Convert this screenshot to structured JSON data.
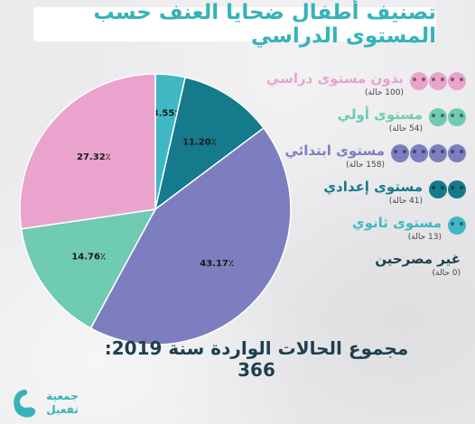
{
  "title": "تصنيف أطفال ضحايا العنف حسب المستوى الدراسي",
  "total_text": "مجموع الحالات الواردة سنة 2019: 366",
  "logo": {
    "line1": "جمعية",
    "line2": "تفعيل"
  },
  "colors": {
    "title": "#36b3b8",
    "total": "#1e3f4f",
    "none": "#e9a3cc",
    "primary_pre": "#3fb8c4",
    "prep": "#147a8c",
    "primary": "#7d7ec0",
    "secondary": "#6fcbb1",
    "unknown": "#1e3f4f"
  },
  "legend": [
    {
      "label": "بدون مستوى دراسي",
      "count": "(100 حالة)",
      "color": "#e9a3cc",
      "icons": 3,
      "icon_name": "child-face-icon"
    },
    {
      "label": "مستوى أولي",
      "count": "(54 حالة)",
      "color": "#6fcbb1",
      "icons": 2,
      "icon_name": "child-face-icon"
    },
    {
      "label": "مستوى ابتدائي",
      "count": "(158 حالة)",
      "color": "#7d7ec0",
      "icons": 4,
      "icon_name": "child-face-icon"
    },
    {
      "label": "مستوى إعدادي",
      "count": "(41 حالة)",
      "color": "#147a8c",
      "icons": 2,
      "icon_name": "child-face-icon"
    },
    {
      "label": "مستوى ثانوي",
      "count": "(13 حالة)",
      "color": "#3fb8c4",
      "icons": 1,
      "icon_name": "child-face-icon"
    },
    {
      "label": "غير مصرحين",
      "count": "(0 حالة)",
      "color": "#1e3f4f",
      "icons": 0,
      "icon_name": "child-face-icon"
    }
  ],
  "chart_data": {
    "type": "pie",
    "slices": [
      {
        "label": "3.55٪",
        "value": 3.55,
        "color": "#3fb8c4"
      },
      {
        "label": "11.20٪",
        "value": 11.2,
        "color": "#147a8c"
      },
      {
        "label": "43.17٪",
        "value": 43.17,
        "color": "#7d7ec0"
      },
      {
        "label": "14.76٪",
        "value": 14.76,
        "color": "#6fcbb1"
      },
      {
        "label": "27.32٪",
        "value": 27.32,
        "color": "#e9a3cc"
      }
    ],
    "start_angle_deg": 0,
    "direction": "clockwise",
    "legend_position": "right"
  }
}
